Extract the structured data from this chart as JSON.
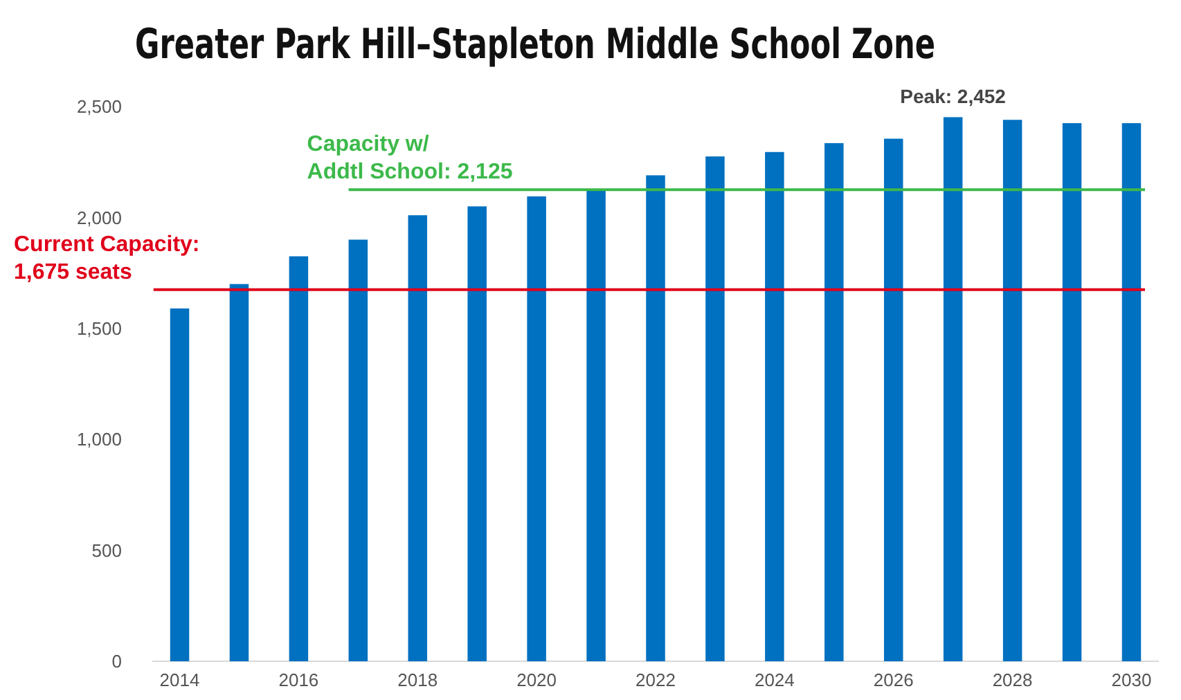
{
  "chart_data": {
    "type": "bar",
    "title": "Greater Park Hill–Stapleton Middle School Zone",
    "categories": [
      "2014",
      null,
      "2016",
      null,
      "2018",
      null,
      "2020",
      null,
      "2022",
      null,
      "2024",
      null,
      "2026",
      null,
      "2028",
      null,
      "2030"
    ],
    "values": [
      1590,
      1700,
      1825,
      1900,
      2010,
      2050,
      2095,
      2120,
      2190,
      2275,
      2295,
      2335,
      2355,
      2452,
      2440,
      2425,
      2425
    ],
    "color": "#0070c0",
    "ylim": [
      0,
      2500
    ],
    "yticks": [
      0,
      {
        "value": 500,
        "label": "500"
      },
      {
        "value": 1000,
        "label": "1,000"
      },
      {
        "value": 1500,
        "label": "1,500"
      },
      {
        "value": 2000,
        "label": "2,000"
      },
      {
        "value": 2500,
        "label": "2,500"
      }
    ],
    "ref_lines": [
      {
        "axis": "y",
        "value": 1675,
        "label": "Current Capacity:\n1,675 seats",
        "color": "#e0001b"
      },
      {
        "axis": "y",
        "value": 2125,
        "label": "Capacity w/\nAddtl School: 2,125",
        "color": "#3cb94a"
      }
    ],
    "annotations": [
      "Peak: 2,452"
    ],
    "grid": false
  }
}
